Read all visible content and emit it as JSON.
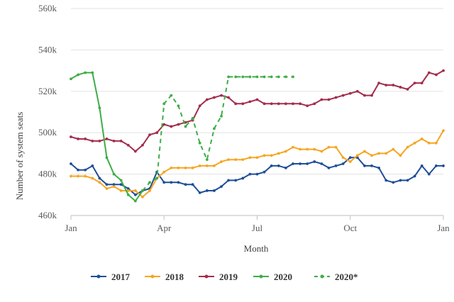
{
  "chart_data": {
    "type": "line",
    "xlabel": "Month",
    "ylabel": "Number of system seats",
    "x_ticks": [
      "Jan",
      "Apr",
      "Jul",
      "Oct",
      "Jan"
    ],
    "x_tick_weeks": [
      0,
      13,
      26,
      39,
      52
    ],
    "y_ticks": [
      "460k",
      "480k",
      "500k",
      "520k",
      "540k",
      "560k"
    ],
    "y_tick_values": [
      460000,
      480000,
      500000,
      520000,
      540000,
      560000
    ],
    "ylim": [
      460000,
      560000
    ],
    "xlim": [
      0,
      52
    ],
    "grid": "horizontal",
    "legend_position": "bottom",
    "series": [
      {
        "name": "2017",
        "color": "#1f4e99",
        "dash": "solid",
        "start_week": 0,
        "values": [
          485000,
          482000,
          482000,
          484000,
          478000,
          475000,
          475000,
          475000,
          473000,
          470000,
          472000,
          473000,
          481000,
          476000,
          476000,
          476000,
          475000,
          475000,
          471000,
          472000,
          472000,
          474000,
          477000,
          477000,
          478000,
          480000,
          480000,
          481000,
          484000,
          484000,
          483000,
          485000,
          485000,
          485000,
          486000,
          485000,
          483000,
          484000,
          485000,
          488000,
          488000,
          484000,
          484000,
          483000,
          477000,
          476000,
          477000,
          477000,
          479000,
          484000,
          480000,
          484000,
          484000
        ]
      },
      {
        "name": "2018",
        "color": "#f5a623",
        "dash": "solid",
        "start_week": 0,
        "values": [
          479000,
          479000,
          479000,
          478000,
          476000,
          473000,
          474000,
          472000,
          472000,
          472000,
          469000,
          472000,
          478000,
          481000,
          483000,
          483000,
          483000,
          483000,
          484000,
          484000,
          484000,
          486000,
          487000,
          487000,
          487000,
          488000,
          488000,
          489000,
          489000,
          490000,
          491000,
          493000,
          492000,
          492000,
          492000,
          491000,
          493000,
          493000,
          488000,
          486000,
          489000,
          491000,
          489000,
          490000,
          490000,
          492000,
          489000,
          493000,
          495000,
          497000,
          495000,
          495000,
          501000
        ]
      },
      {
        "name": "2019",
        "color": "#a32d4b",
        "dash": "solid",
        "start_week": 0,
        "values": [
          498000,
          497000,
          497000,
          496000,
          496000,
          497000,
          496000,
          496000,
          494000,
          491000,
          494000,
          499000,
          500000,
          504000,
          503000,
          504000,
          505000,
          506000,
          513000,
          516000,
          517000,
          518000,
          517000,
          514000,
          514000,
          515000,
          516000,
          514000,
          514000,
          514000,
          514000,
          514000,
          514000,
          513000,
          514000,
          516000,
          516000,
          517000,
          518000,
          519000,
          520000,
          518000,
          518000,
          524000,
          523000,
          523000,
          522000,
          521000,
          524000,
          524000,
          529000,
          528000,
          530000
        ]
      },
      {
        "name": "2020",
        "color": "#3fad47",
        "dash": "solid",
        "start_week": 0,
        "values": [
          526000,
          528000,
          529000,
          529000,
          512000,
          488000,
          480000,
          477000,
          470000,
          467000,
          472000
        ]
      },
      {
        "name": "2020*",
        "color": "#3fad47",
        "dash": "dashed",
        "start_week": 10,
        "values": [
          472000,
          476000,
          478000,
          514000,
          518000,
          513000,
          503000,
          507000,
          495000,
          487000,
          502000,
          508000,
          527000,
          527000,
          527000,
          527000,
          527000,
          527000,
          527000,
          527000,
          527000,
          527000
        ]
      }
    ]
  }
}
